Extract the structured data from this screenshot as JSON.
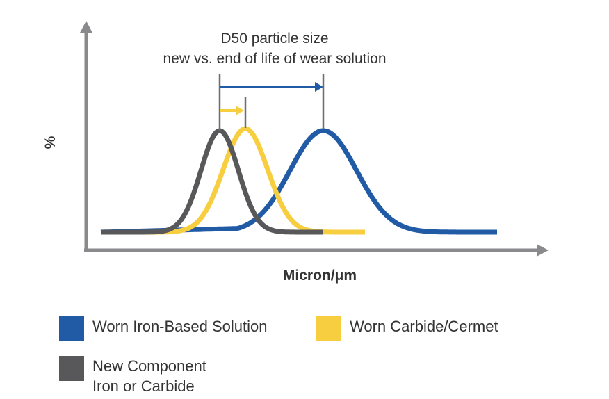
{
  "chart_data": {
    "type": "line",
    "title": "D50 particle size",
    "subtitle": "new vs. end of life of wear solution",
    "xlabel": "Micron/μm",
    "ylabel": "%",
    "axis_ticks": false,
    "grid": false,
    "legend_position": "bottom",
    "series": [
      {
        "name": "Worn Iron-Based Solution",
        "color": "#215BA6",
        "curve": {
          "baseline": 0.0,
          "peak_x": 465,
          "peak_y": 1.0,
          "sigma": 48,
          "skew_left": 0.06,
          "x_start": 145,
          "x_end": 715
        }
      },
      {
        "name": "Worn Carbide/Cermet",
        "color": "#F7CE3F",
        "curve": {
          "baseline": 0.0,
          "peak_x": 353,
          "peak_y": 1.02,
          "sigma": 32,
          "skew_left": 0.0,
          "x_start": 145,
          "x_end": 525
        }
      },
      {
        "name": "New Component Iron or Carbide",
        "color": "#58585A",
        "curve": {
          "baseline": 0.0,
          "peak_x": 316,
          "peak_y": 1.0,
          "sigma": 27,
          "skew_left": 0.0,
          "x_start": 145,
          "x_end": 465
        }
      }
    ],
    "annotations": {
      "d50_new": 316,
      "d50_worn_carbide": 353,
      "d50_worn_iron": 465
    }
  },
  "legend": [
    {
      "label": "Worn Iron-Based Solution",
      "color": "#215BA6"
    },
    {
      "label": "Worn Carbide/Cermet",
      "color": "#F7CE3F"
    },
    {
      "label": "New Component\nIron or Carbide",
      "color": "#58585A"
    }
  ]
}
